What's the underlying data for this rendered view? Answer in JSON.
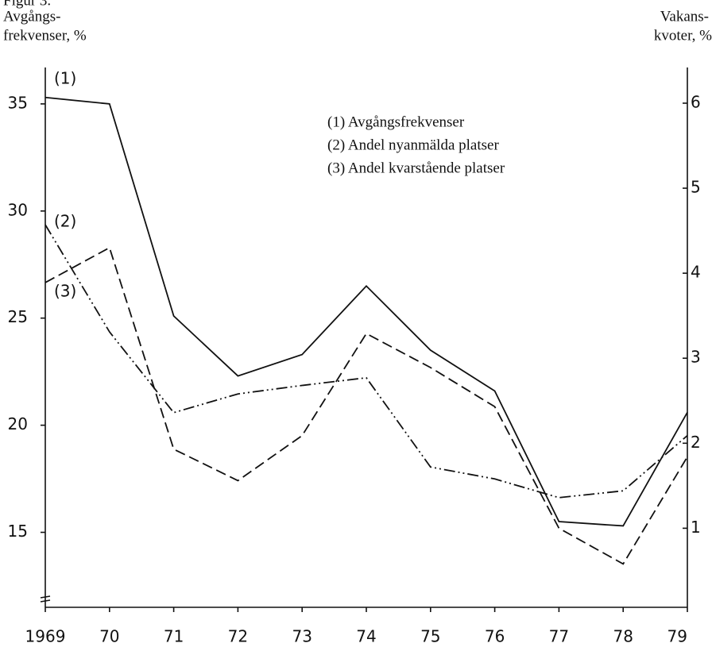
{
  "chart_data": {
    "type": "line",
    "title": "Figur 3.",
    "ylabel": [
      "Avgångs-",
      "frekvenser, %"
    ],
    "y2label": [
      "Vakans-",
      "kvoter, %"
    ],
    "categories": [
      "1969",
      "70",
      "71",
      "72",
      "73",
      "74",
      "75",
      "76",
      "77",
      "78",
      "79"
    ],
    "ylim": [
      11.5,
      36.7
    ],
    "yticks": [
      15,
      20,
      25,
      30,
      35
    ],
    "y2lim": [
      0.07,
      6.42
    ],
    "y2ticks": [
      1,
      2,
      3,
      4,
      5,
      6
    ],
    "grid": false,
    "legend": "upper right",
    "series": [
      {
        "name": "(1) Avgångsfrekvenser",
        "color": "#111111",
        "style": "solid",
        "values": [
          35.3,
          35.0,
          25.1,
          22.3,
          23.3,
          26.5,
          23.5,
          21.6,
          15.5,
          15.3,
          20.6
        ]
      },
      {
        "name": "(2) Andel nyanmälda platser",
        "color": "#111111",
        "style": "dashdotdot",
        "axis": "y2",
        "values": [
          4.57,
          3.31,
          2.36,
          2.58,
          2.68,
          2.77,
          1.72,
          1.58,
          1.36,
          1.44,
          2.09
        ]
      },
      {
        "name": "(3) Andel kvarstående platser",
        "color": "#111111",
        "style": "dashed",
        "axis": "y2",
        "values": [
          3.89,
          4.3,
          1.93,
          1.56,
          2.09,
          3.29,
          2.89,
          2.43,
          1.0,
          0.58,
          1.84
        ]
      }
    ],
    "annotations": [
      "(1)",
      "(2)",
      "(3)"
    ]
  }
}
